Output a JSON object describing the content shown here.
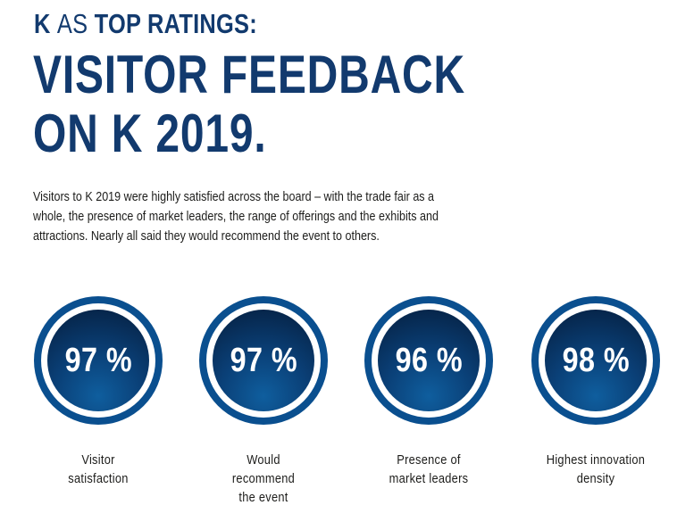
{
  "header": {
    "kicker_bold_1": "K",
    "kicker_light": "AS",
    "kicker_bold_2": "TOP RATINGS:",
    "headline_line1": "VISITOR FEEDBACK",
    "headline_line2": "ON K 2019."
  },
  "intro": {
    "line1": "Visitors to K 2019 were highly satisfied across the board – with the trade fair as a",
    "line2": "whole, the presence of market leaders, the range of offerings and the exhibits and",
    "line3": "attractions. Nearly all said they would recommend the event to others."
  },
  "stats": [
    {
      "value": "97 %",
      "label_lines": [
        "Visitor",
        "satisfaction"
      ]
    },
    {
      "value": "97 %",
      "label_lines": [
        "Would",
        "recommend",
        "the event"
      ]
    },
    {
      "value": "96 %",
      "label_lines": [
        "Presence of",
        "market leaders"
      ]
    },
    {
      "value": "98 %",
      "label_lines": [
        "Highest innovation",
        "density"
      ]
    }
  ],
  "colors": {
    "brand_blue": "#123a6e",
    "ring_blue": "#0a4f8f",
    "disc_dark": "#051d3c"
  }
}
